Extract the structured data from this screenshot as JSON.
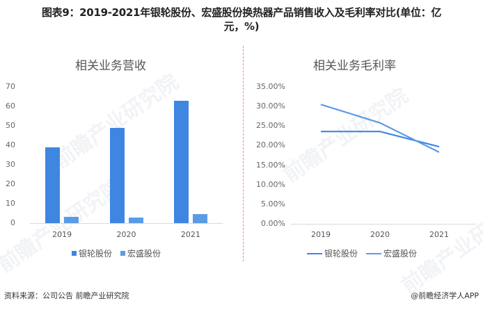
{
  "title": {
    "line1": "图表9：2019-2021年银轮股份、宏盛股份换热器产品销售收入及毛利率对比(单位：亿",
    "line2": "元，%)"
  },
  "footer": {
    "source": "资料来源：公司公告 前瞻产业研究院",
    "credit": "@前瞻经济学人APP"
  },
  "watermark": "前瞻产业研究院",
  "colors": {
    "yinlun": "#3f86e0",
    "hongsheng": "#5b9be6",
    "divider": "#f08a8a"
  },
  "chart_data": [
    {
      "type": "bar",
      "title": "相关业务营收",
      "categories": [
        "2019",
        "2020",
        "2021"
      ],
      "series": [
        {
          "name": "银轮股份",
          "values": [
            38.9,
            48.9,
            62.9
          ]
        },
        {
          "name": "宏盛股份",
          "values": [
            3.2,
            2.9,
            4.6
          ]
        }
      ],
      "xlabel": "",
      "ylabel": "",
      "ylim": [
        0,
        70
      ],
      "yticks": [
        "0",
        "10",
        "20",
        "30",
        "40",
        "50",
        "60",
        "70"
      ],
      "grid": false,
      "legend_position": "bottom"
    },
    {
      "type": "line",
      "title": "相关业务毛利率",
      "categories": [
        "2019",
        "2020",
        "2021"
      ],
      "series": [
        {
          "name": "银轮股份",
          "values": [
            23.6,
            23.6,
            19.7
          ]
        },
        {
          "name": "宏盛股份",
          "values": [
            30.5,
            25.8,
            18.3
          ]
        }
      ],
      "xlabel": "",
      "ylabel": "",
      "ylim": [
        0,
        35
      ],
      "yticks": [
        "0.00%",
        "5.00%",
        "10.00%",
        "15.00%",
        "20.00%",
        "25.00%",
        "30.00%",
        "35.00%"
      ],
      "grid": false,
      "legend_position": "bottom"
    }
  ]
}
